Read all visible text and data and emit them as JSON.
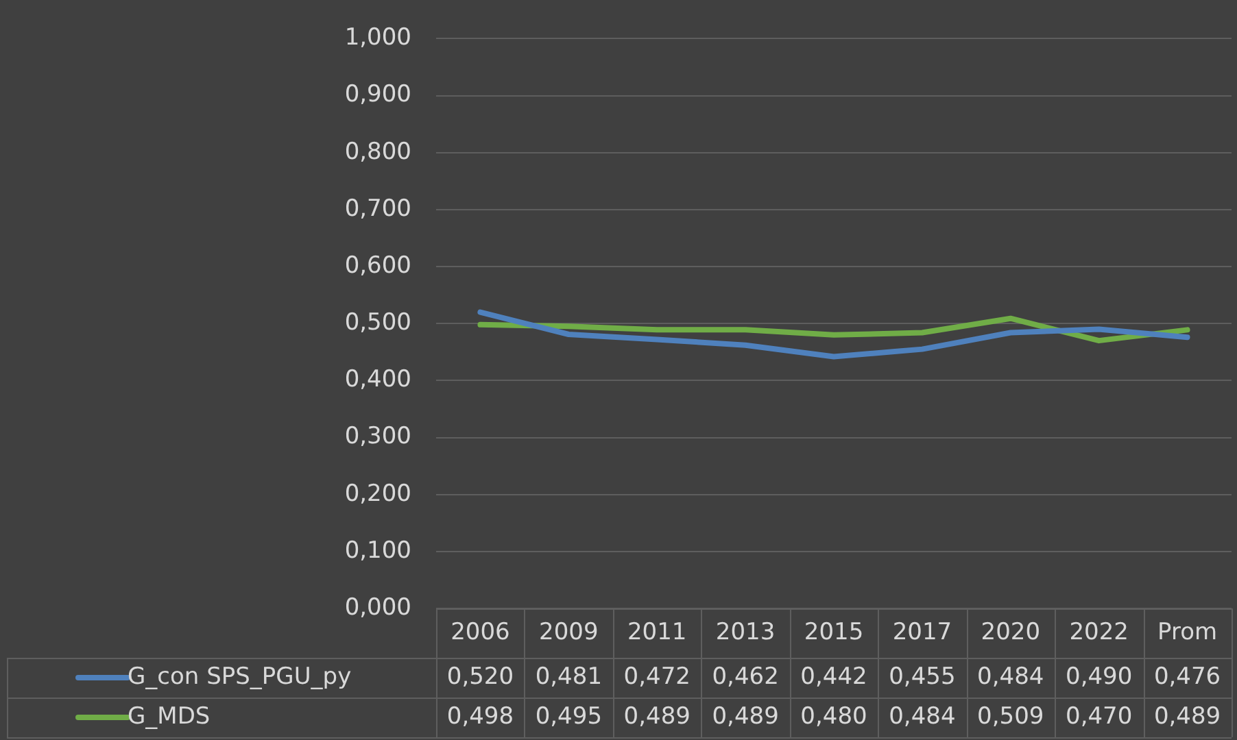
{
  "chart_data": {
    "type": "line",
    "categories": [
      "2006",
      "2009",
      "2011",
      "2013",
      "2015",
      "2017",
      "2020",
      "2022",
      "Prom"
    ],
    "series": [
      {
        "name": "G_con SPS_PGU_py",
        "color": "#4f81bd",
        "values": [
          0.52,
          0.481,
          0.472,
          0.462,
          0.442,
          0.455,
          0.484,
          0.49,
          0.476
        ],
        "value_labels": [
          "0,520",
          "0,481",
          "0,472",
          "0,462",
          "0,442",
          "0,455",
          "0,484",
          "0,490",
          "0,476"
        ]
      },
      {
        "name": "G_MDS",
        "color": "#70ad47",
        "values": [
          0.498,
          0.495,
          0.489,
          0.489,
          0.48,
          0.484,
          0.509,
          0.47,
          0.489
        ],
        "value_labels": [
          "0,498",
          "0,495",
          "0,489",
          "0,489",
          "0,480",
          "0,484",
          "0,509",
          "0,470",
          "0,489"
        ]
      }
    ],
    "ylim": [
      0,
      1
    ],
    "yticks": [
      {
        "value": 0,
        "label": "0,000"
      },
      {
        "value": 0.1,
        "label": "0,100"
      },
      {
        "value": 0.2,
        "label": "0,200"
      },
      {
        "value": 0.3,
        "label": "0,300"
      },
      {
        "value": 0.4,
        "label": "0,400"
      },
      {
        "value": 0.5,
        "label": "0,500"
      },
      {
        "value": 0.6,
        "label": "0,600"
      },
      {
        "value": 0.7,
        "label": "0,700"
      },
      {
        "value": 0.8,
        "label": "0,800"
      },
      {
        "value": 0.9,
        "label": "0,900"
      },
      {
        "value": 1,
        "label": "1,000"
      }
    ],
    "grid": "y",
    "legend": "bottom",
    "marker": "none",
    "line_style": "solid"
  }
}
